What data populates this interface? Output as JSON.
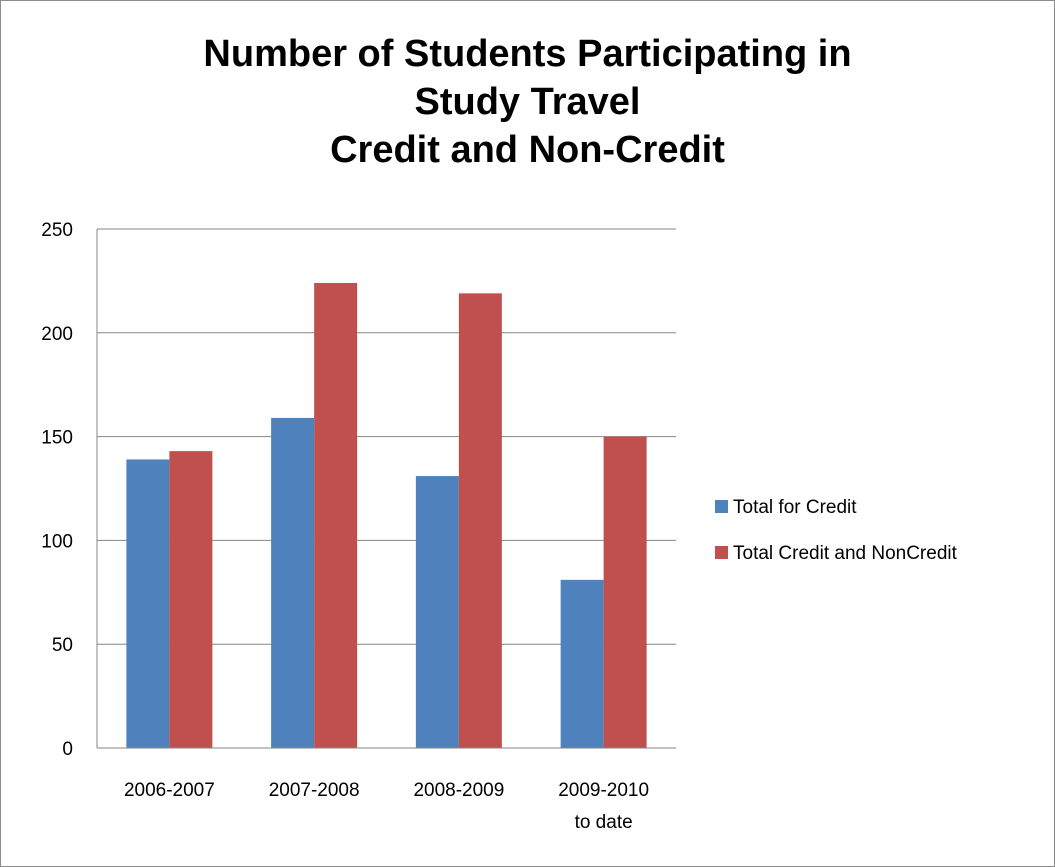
{
  "chart_data": {
    "type": "bar",
    "title_lines": [
      "Number of Students Participating in",
      "Study Travel",
      "Credit and Non-Credit"
    ],
    "categories": [
      [
        "2006-2007"
      ],
      [
        "2007-2008"
      ],
      [
        "2008-2009"
      ],
      [
        "2009-2010",
        "to date"
      ]
    ],
    "series": [
      {
        "name": "Total for Credit",
        "color": "#4f81bd",
        "values": [
          139,
          159,
          131,
          81
        ]
      },
      {
        "name": "Total Credit and NonCredit",
        "color": "#c0504d",
        "values": [
          143,
          224,
          219,
          150
        ]
      }
    ],
    "ylim": [
      0,
      250
    ],
    "yticks": [
      0,
      50,
      100,
      150,
      200,
      250
    ],
    "grid": true,
    "legend_position": "right"
  }
}
